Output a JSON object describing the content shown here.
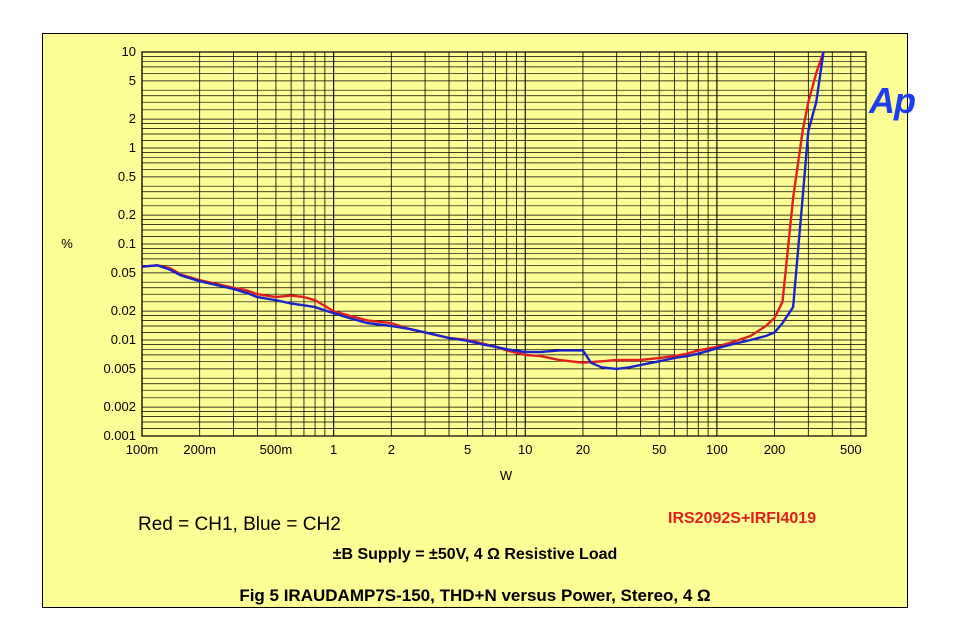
{
  "chart_data": {
    "type": "line",
    "xscale": "log",
    "yscale": "log",
    "xlim": [
      0.1,
      600
    ],
    "ylim": [
      0.001,
      10
    ],
    "xlabel": "W",
    "ylabel": "%",
    "grid": true,
    "x_ticks": [
      {
        "v": 0.1,
        "label": "100m"
      },
      {
        "v": 0.2,
        "label": "200m"
      },
      {
        "v": 0.5,
        "label": "500m"
      },
      {
        "v": 1,
        "label": "1"
      },
      {
        "v": 2,
        "label": "2"
      },
      {
        "v": 5,
        "label": "5"
      },
      {
        "v": 10,
        "label": "10"
      },
      {
        "v": 20,
        "label": "20"
      },
      {
        "v": 50,
        "label": "50"
      },
      {
        "v": 100,
        "label": "100"
      },
      {
        "v": 200,
        "label": "200"
      },
      {
        "v": 500,
        "label": "500"
      }
    ],
    "y_ticks": [
      {
        "v": 10,
        "label": "10"
      },
      {
        "v": 5,
        "label": "5"
      },
      {
        "v": 2,
        "label": "2"
      },
      {
        "v": 1,
        "label": "1"
      },
      {
        "v": 0.5,
        "label": "0.5"
      },
      {
        "v": 0.2,
        "label": "0.2"
      },
      {
        "v": 0.1,
        "label": "0.1"
      },
      {
        "v": 0.05,
        "label": "0.05"
      },
      {
        "v": 0.02,
        "label": "0.02"
      },
      {
        "v": 0.01,
        "label": "0.01"
      },
      {
        "v": 0.005,
        "label": "0.005"
      },
      {
        "v": 0.002,
        "label": "0.002"
      },
      {
        "v": 0.001,
        "label": "0.001"
      }
    ],
    "series": [
      {
        "name": "CH1",
        "color": "#e0201c",
        "x": [
          0.1,
          0.12,
          0.14,
          0.16,
          0.2,
          0.25,
          0.3,
          0.35,
          0.4,
          0.5,
          0.6,
          0.7,
          0.8,
          1,
          1.2,
          1.5,
          2,
          2.5,
          3,
          4,
          5,
          6,
          7,
          8,
          10,
          12,
          15,
          20,
          25,
          30,
          35,
          40,
          50,
          60,
          70,
          80,
          100,
          120,
          150,
          180,
          200,
          220,
          250,
          280,
          300,
          330,
          360
        ],
        "y": [
          0.058,
          0.06,
          0.056,
          0.048,
          0.042,
          0.038,
          0.035,
          0.033,
          0.03,
          0.028,
          0.029,
          0.028,
          0.026,
          0.02,
          0.018,
          0.016,
          0.015,
          0.013,
          0.012,
          0.0105,
          0.01,
          0.0092,
          0.0085,
          0.0078,
          0.007,
          0.0068,
          0.0062,
          0.0058,
          0.006,
          0.0062,
          0.0062,
          0.0062,
          0.0065,
          0.0068,
          0.0072,
          0.0078,
          0.0085,
          0.0095,
          0.011,
          0.014,
          0.017,
          0.025,
          0.3,
          1.5,
          3,
          6,
          10
        ]
      },
      {
        "name": "CH2",
        "color": "#1a23c8",
        "x": [
          0.1,
          0.12,
          0.14,
          0.16,
          0.2,
          0.25,
          0.3,
          0.35,
          0.4,
          0.5,
          0.6,
          0.7,
          0.8,
          1,
          1.2,
          1.5,
          2,
          2.5,
          3,
          4,
          5,
          6,
          7,
          8,
          10,
          12,
          15,
          20,
          22,
          25,
          30,
          35,
          40,
          50,
          60,
          70,
          80,
          100,
          120,
          150,
          180,
          200,
          220,
          250,
          280,
          300,
          330,
          360
        ],
        "y": [
          0.058,
          0.06,
          0.054,
          0.047,
          0.041,
          0.037,
          0.034,
          0.031,
          0.028,
          0.026,
          0.024,
          0.023,
          0.022,
          0.019,
          0.017,
          0.015,
          0.014,
          0.013,
          0.012,
          0.0105,
          0.0098,
          0.009,
          0.0085,
          0.008,
          0.0075,
          0.0075,
          0.0078,
          0.0078,
          0.0058,
          0.0052,
          0.005,
          0.0052,
          0.0055,
          0.006,
          0.0065,
          0.0068,
          0.0072,
          0.0082,
          0.009,
          0.01,
          0.011,
          0.012,
          0.015,
          0.022,
          0.3,
          1.5,
          3,
          10
        ]
      }
    ]
  },
  "legend_text": "Red = CH1,  Blue  = CH2",
  "model_text": "IRS2092S+IRFI4019",
  "supply_text": "±B Supply = ±50V,  4 Ω Resistive Load",
  "caption": "Fig 5 IRAUDAMP7S-150, THD+N versus Power, Stereo, 4 Ω",
  "logo_text": "Ap",
  "colors": {
    "panel_bg": "#fdfd96",
    "red": "#e0201c",
    "blue": "#1a23c8",
    "logo": "#1e3cf0"
  }
}
